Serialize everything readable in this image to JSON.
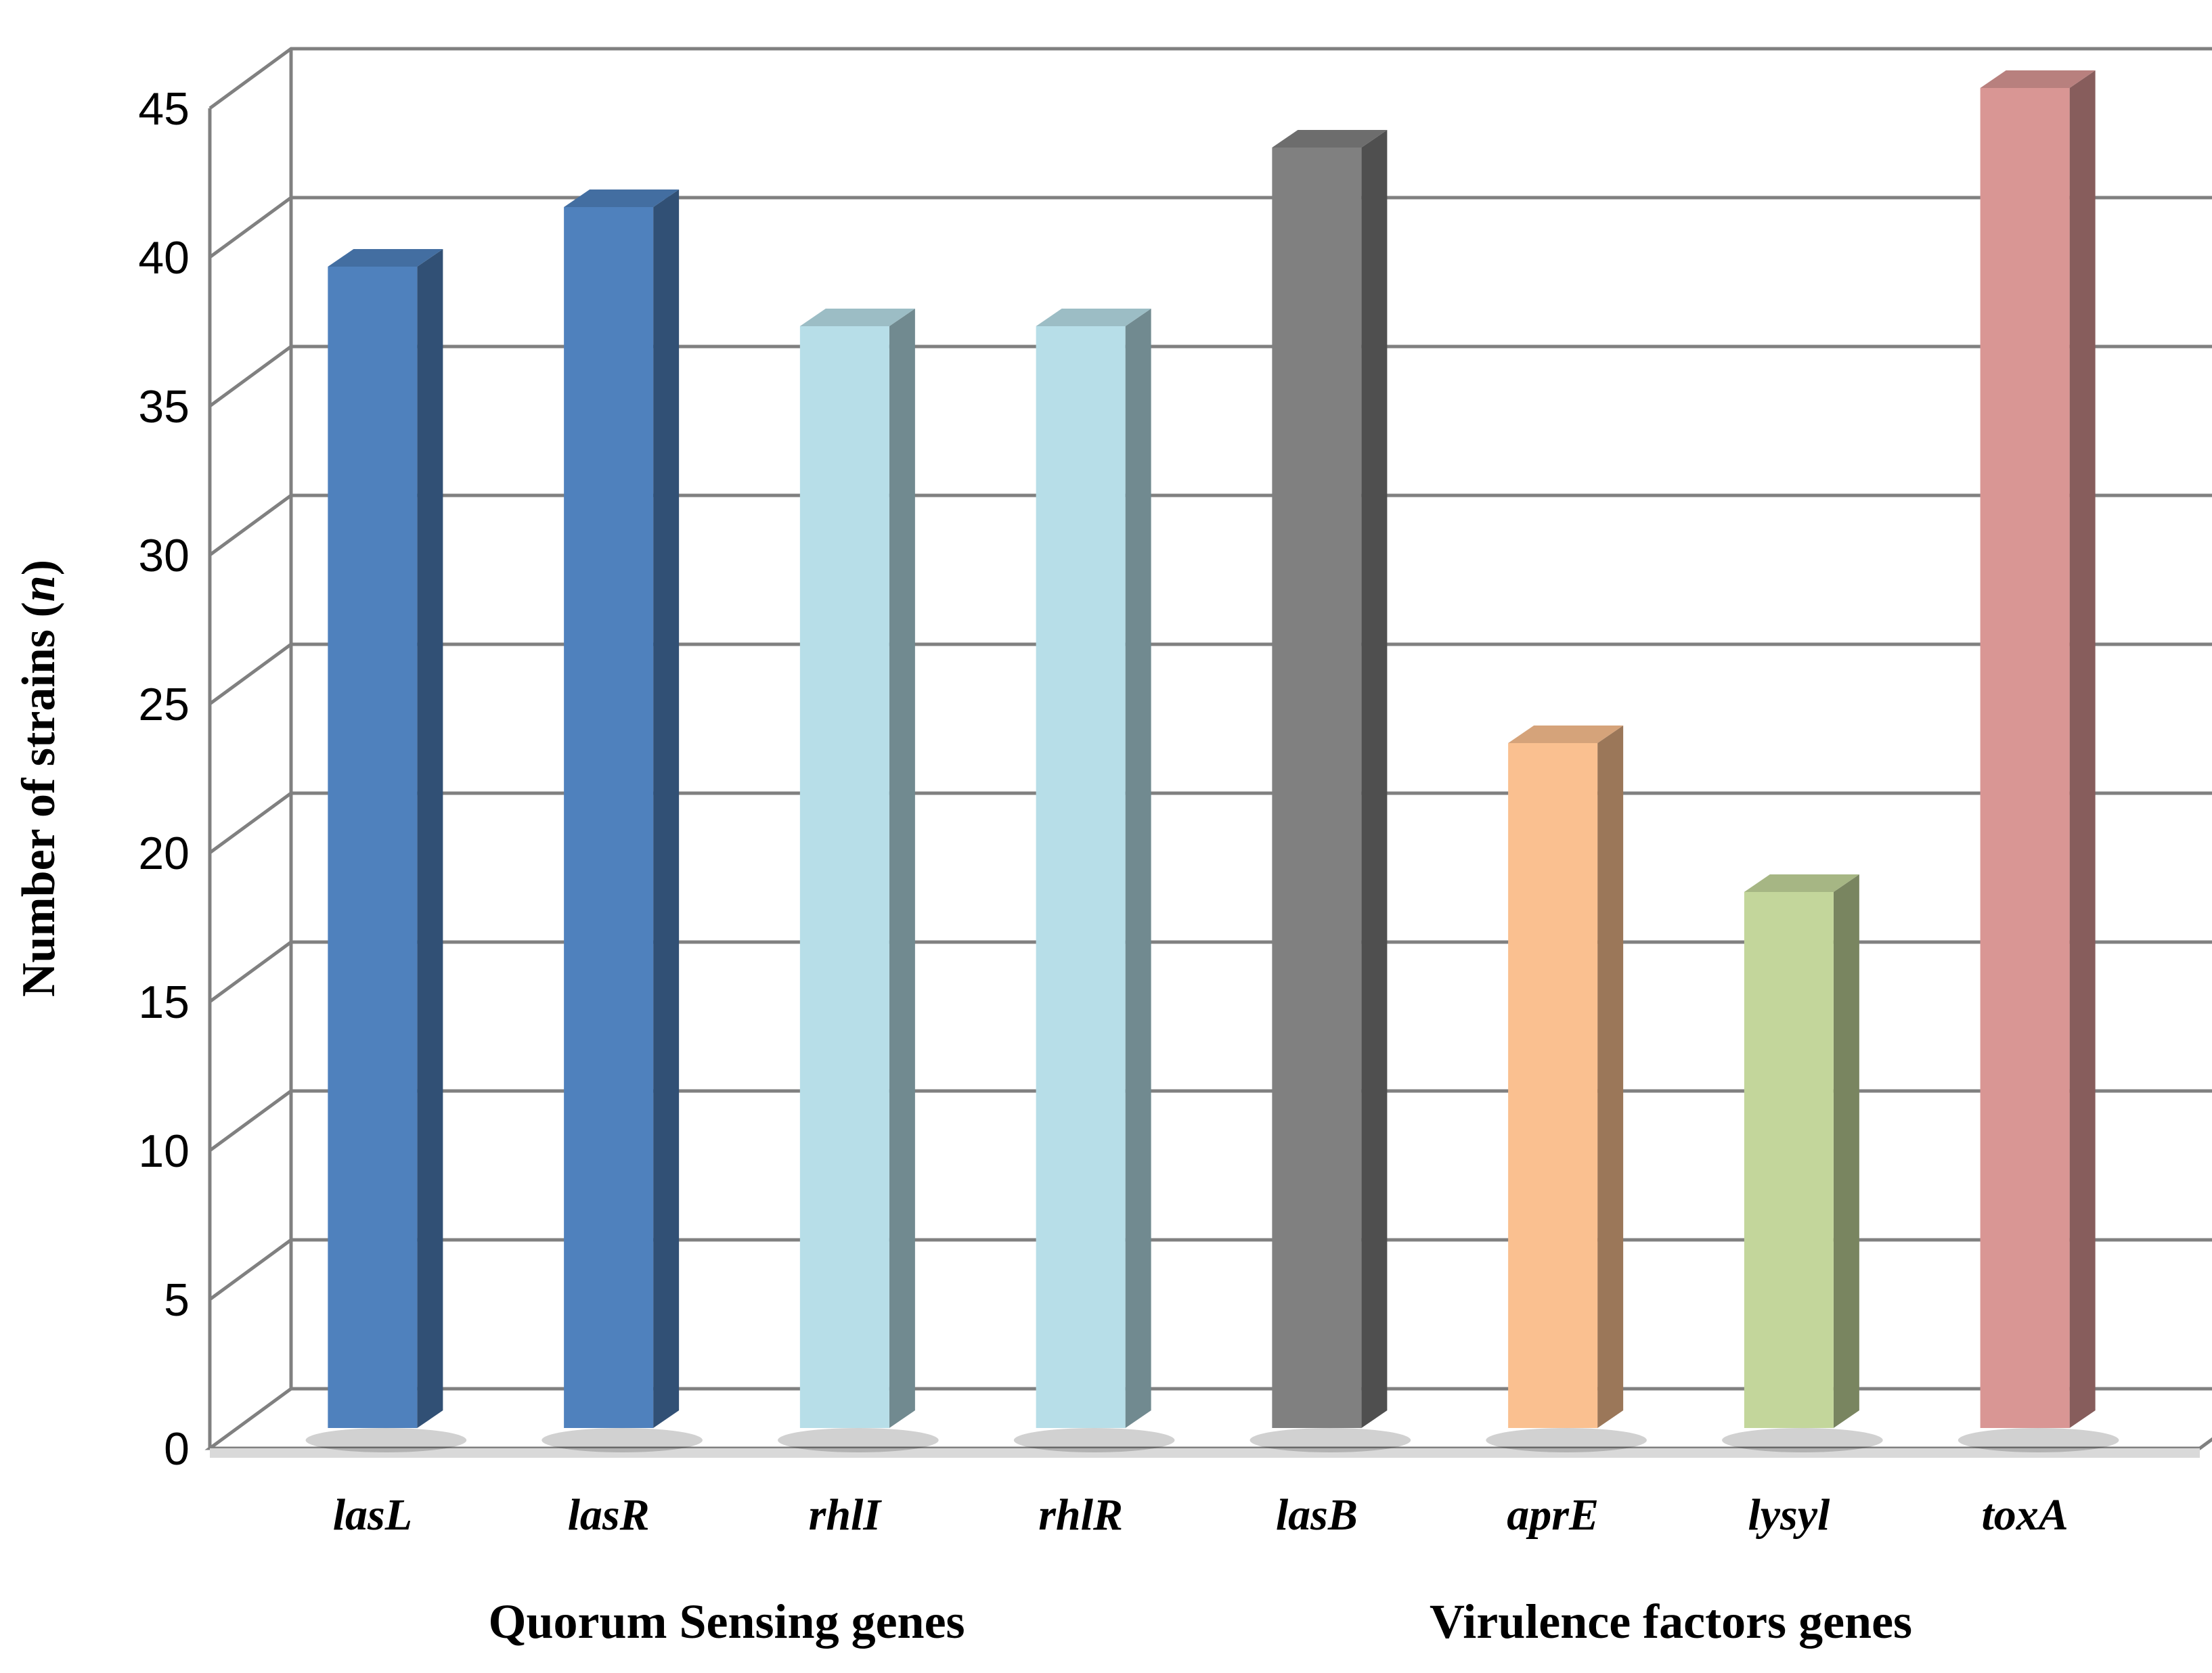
{
  "chart_data": {
    "type": "bar",
    "style": "3d-column",
    "title": "",
    "xlabel": "",
    "ylabel": "Number of strains (",
    "ylabel_italic": "n",
    "ylabel_suffix": ")",
    "ylim": [
      0,
      45
    ],
    "yticks": [
      0,
      5,
      10,
      15,
      20,
      25,
      30,
      35,
      40,
      45
    ],
    "grid": true,
    "categories": [
      "lasL",
      "lasR",
      "rhlI",
      "rhlR",
      "lasB",
      "aprE",
      "lysyl",
      "toxA"
    ],
    "values": [
      39,
      41,
      37,
      37,
      43,
      23,
      18,
      45
    ],
    "bar_colors": [
      "#4F81BD",
      "#4F81BD",
      "#B7DEE8",
      "#B7DEE8",
      "#808080",
      "#FAC090",
      "#C3D69B",
      "#D99694"
    ],
    "groups": [
      {
        "label": "Quorum Sensing genes",
        "categories": [
          "lasL",
          "lasR",
          "rhlI",
          "rhlR"
        ]
      },
      {
        "label": "Virulence factors genes",
        "categories": [
          "lasB",
          "aprE",
          "lysyl",
          "toxA"
        ]
      }
    ]
  }
}
